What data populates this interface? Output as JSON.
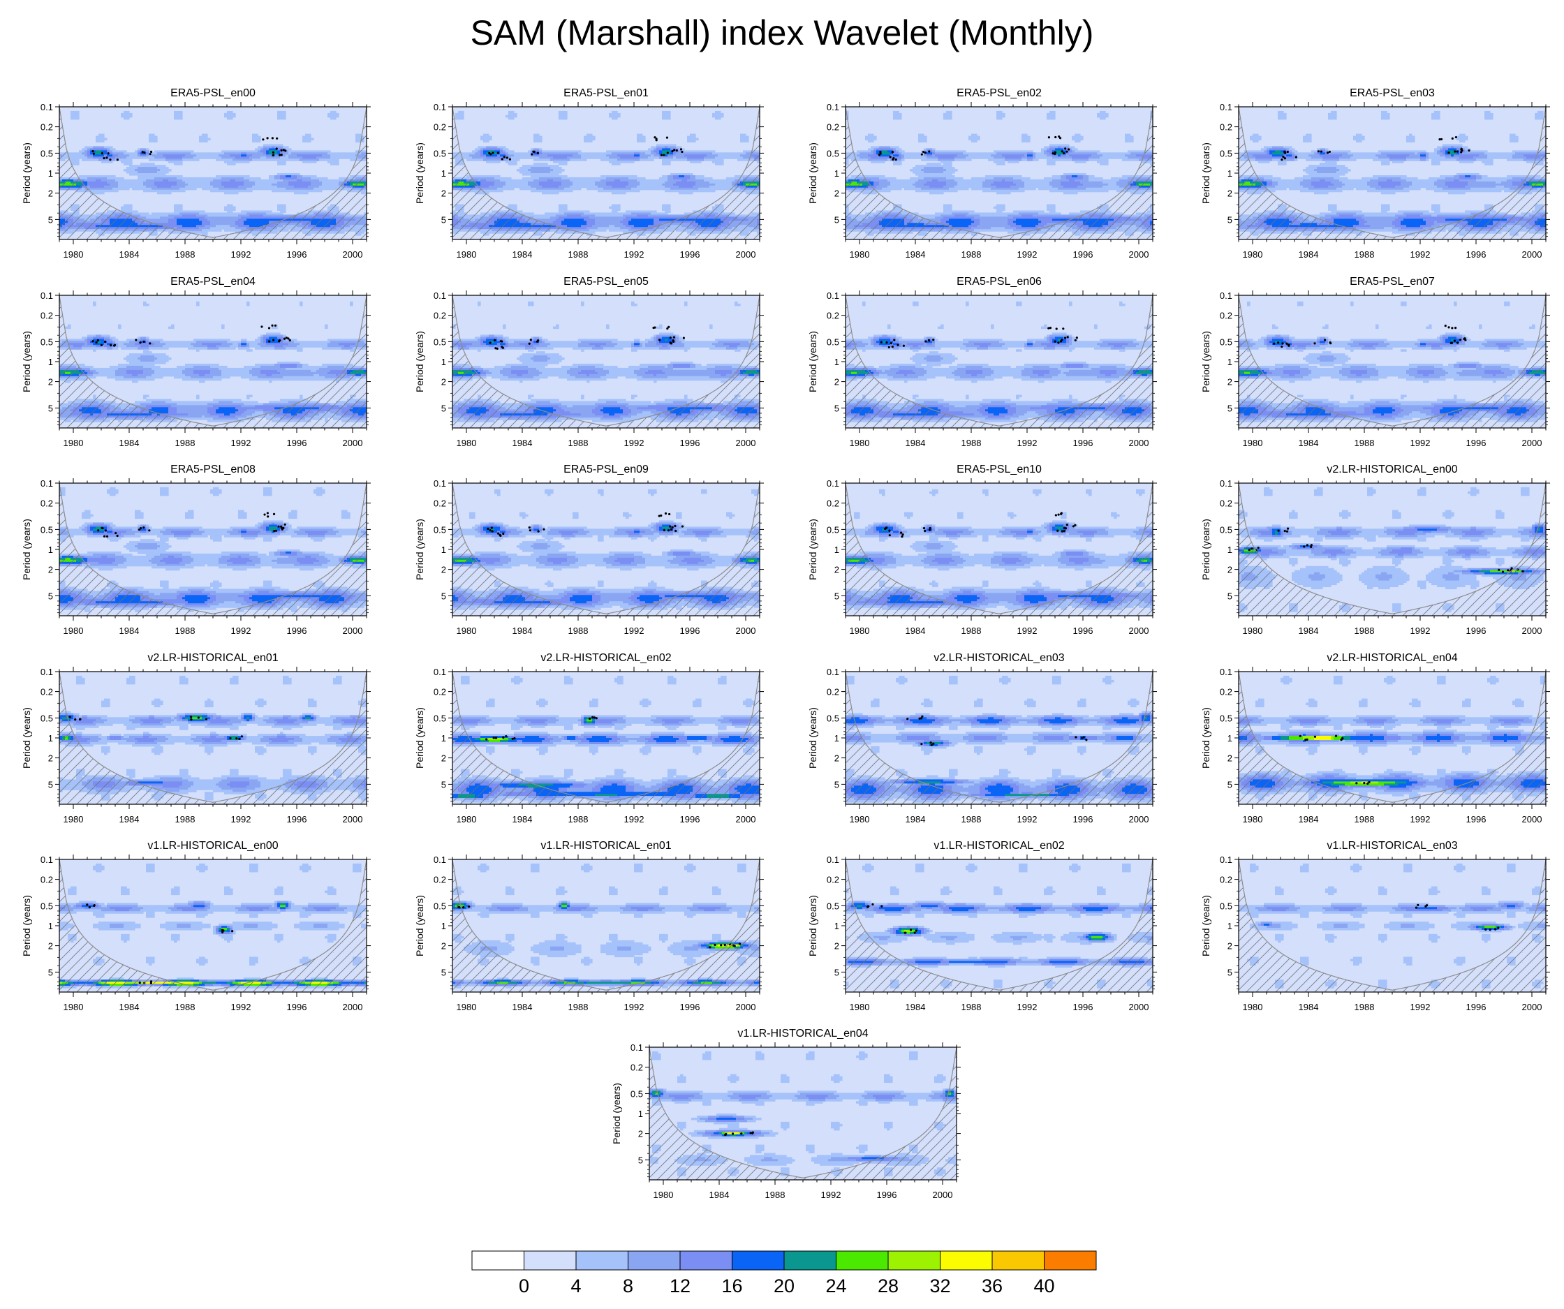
{
  "title": "SAM (Marshall) index Wavelet (Monthly)",
  "colors": {
    "levels": [
      "#ffffff",
      "#d4dffb",
      "#a6c2fa",
      "#8aa6f3",
      "#7a8ef3",
      "#0a64f5",
      "#09978f",
      "#4be800",
      "#9cf200",
      "#fcfc00",
      "#fac800",
      "#fa7d00",
      "#f51b0a"
    ],
    "coi_line": "#8c8c8c",
    "hatch": "#707070",
    "frame": "#000000"
  },
  "chart_data": {
    "type": "heatmap",
    "ylabel": "Period (years)",
    "y_ticks": [
      "0.1",
      "0.2",
      "0.5",
      "1",
      "2",
      "5"
    ],
    "y_tick_values": [
      0.1,
      0.2,
      0.5,
      1,
      2,
      5
    ],
    "x_ticks": [
      "1980",
      "1984",
      "1988",
      "1992",
      "1996",
      "2000"
    ],
    "x_tick_values": [
      1980,
      1984,
      1988,
      1992,
      1996,
      2000
    ],
    "xlim": [
      1979,
      2001
    ],
    "ylim": [
      0.1,
      10
    ],
    "y_scale": "log, inverted",
    "colorbar": {
      "labels": [
        "0",
        "4",
        "8",
        "12",
        "16",
        "20",
        "24",
        "28",
        "32",
        "36",
        "40"
      ],
      "levels": [
        0,
        4,
        8,
        12,
        16,
        20,
        24,
        28,
        32,
        36,
        40
      ]
    },
    "panels": [
      {
        "title": "ERA5-PSL_en00",
        "kind": "era5",
        "strength": 1.0
      },
      {
        "title": "ERA5-PSL_en01",
        "kind": "era5",
        "strength": 1.0
      },
      {
        "title": "ERA5-PSL_en02",
        "kind": "era5",
        "strength": 1.0
      },
      {
        "title": "ERA5-PSL_en03",
        "kind": "era5",
        "strength": 1.0
      },
      {
        "title": "ERA5-PSL_en04",
        "kind": "era5",
        "strength": 0.95
      },
      {
        "title": "ERA5-PSL_en05",
        "kind": "era5",
        "strength": 0.95
      },
      {
        "title": "ERA5-PSL_en06",
        "kind": "era5",
        "strength": 0.95
      },
      {
        "title": "ERA5-PSL_en07",
        "kind": "era5",
        "strength": 0.95
      },
      {
        "title": "ERA5-PSL_en08",
        "kind": "era5",
        "strength": 1.0
      },
      {
        "title": "ERA5-PSL_en09",
        "kind": "era5",
        "strength": 0.97
      },
      {
        "title": "ERA5-PSL_en10",
        "kind": "era5",
        "strength": 0.97
      },
      {
        "title": "v2.LR-HISTORICAL_en00",
        "kind": "v2a",
        "strength": 1.0
      },
      {
        "title": "v2.LR-HISTORICAL_en01",
        "kind": "v2b",
        "strength": 1.0
      },
      {
        "title": "v2.LR-HISTORICAL_en02",
        "kind": "v2c",
        "strength": 1.0
      },
      {
        "title": "v2.LR-HISTORICAL_en03",
        "kind": "v2d",
        "strength": 1.0
      },
      {
        "title": "v2.LR-HISTORICAL_en04",
        "kind": "v2e",
        "strength": 1.0
      },
      {
        "title": "v1.LR-HISTORICAL_en00",
        "kind": "v1a",
        "strength": 1.0
      },
      {
        "title": "v1.LR-HISTORICAL_en01",
        "kind": "v1b",
        "strength": 1.0
      },
      {
        "title": "v1.LR-HISTORICAL_en02",
        "kind": "v1c",
        "strength": 1.0
      },
      {
        "title": "v1.LR-HISTORICAL_en03",
        "kind": "v1d",
        "strength": 1.0
      },
      {
        "title": "v1.LR-HISTORICAL_en04",
        "kind": "v1e",
        "strength": 1.0
      }
    ]
  }
}
